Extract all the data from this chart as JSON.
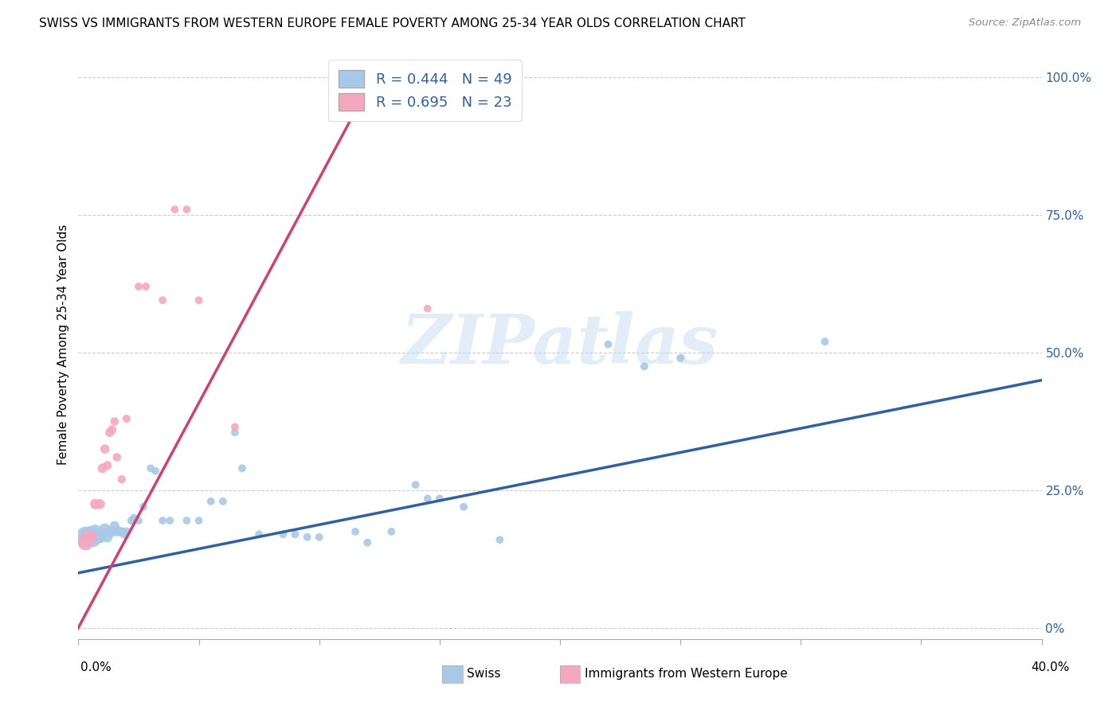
{
  "title": "SWISS VS IMMIGRANTS FROM WESTERN EUROPE FEMALE POVERTY AMONG 25-34 YEAR OLDS CORRELATION CHART",
  "source": "Source: ZipAtlas.com",
  "ylabel": "Female Poverty Among 25-34 Year Olds",
  "xlim": [
    0.0,
    0.4
  ],
  "ylim": [
    -0.02,
    1.05
  ],
  "blue_R": 0.444,
  "blue_N": 49,
  "pink_R": 0.695,
  "pink_N": 23,
  "blue_color": "#A8C8E8",
  "pink_color": "#F4A8C0",
  "blue_line_color": "#3060A0",
  "pink_line_color": "#D04070",
  "legend_text_color": "#3060A0",
  "watermark_color": "#C8DCF0",
  "background_color": "#FFFFFF",
  "grid_color": "#CCCCCC",
  "ytick_values": [
    0.0,
    0.25,
    0.5,
    0.75,
    1.0
  ],
  "ytick_labels": [
    "0%",
    "25.0%",
    "50.0%",
    "75.0%",
    "100.0%"
  ],
  "blue_line_x": [
    0.0,
    0.4
  ],
  "blue_line_y": [
    0.1,
    0.45
  ],
  "pink_line_x": [
    -0.005,
    0.125
  ],
  "pink_line_y": [
    -0.04,
    1.02
  ],
  "blue_points": [
    [
      0.003,
      0.165
    ],
    [
      0.004,
      0.165
    ],
    [
      0.005,
      0.17
    ],
    [
      0.006,
      0.16
    ],
    [
      0.007,
      0.175
    ],
    [
      0.008,
      0.165
    ],
    [
      0.009,
      0.165
    ],
    [
      0.01,
      0.17
    ],
    [
      0.011,
      0.18
    ],
    [
      0.012,
      0.165
    ],
    [
      0.013,
      0.175
    ],
    [
      0.014,
      0.175
    ],
    [
      0.015,
      0.185
    ],
    [
      0.016,
      0.175
    ],
    [
      0.017,
      0.175
    ],
    [
      0.018,
      0.175
    ],
    [
      0.019,
      0.17
    ],
    [
      0.02,
      0.175
    ],
    [
      0.022,
      0.195
    ],
    [
      0.023,
      0.2
    ],
    [
      0.025,
      0.195
    ],
    [
      0.027,
      0.22
    ],
    [
      0.03,
      0.29
    ],
    [
      0.032,
      0.285
    ],
    [
      0.035,
      0.195
    ],
    [
      0.038,
      0.195
    ],
    [
      0.045,
      0.195
    ],
    [
      0.05,
      0.195
    ],
    [
      0.055,
      0.23
    ],
    [
      0.06,
      0.23
    ],
    [
      0.065,
      0.355
    ],
    [
      0.068,
      0.29
    ],
    [
      0.075,
      0.17
    ],
    [
      0.085,
      0.17
    ],
    [
      0.09,
      0.17
    ],
    [
      0.095,
      0.165
    ],
    [
      0.1,
      0.165
    ],
    [
      0.115,
      0.175
    ],
    [
      0.12,
      0.155
    ],
    [
      0.13,
      0.175
    ],
    [
      0.14,
      0.26
    ],
    [
      0.145,
      0.235
    ],
    [
      0.15,
      0.235
    ],
    [
      0.16,
      0.22
    ],
    [
      0.175,
      0.16
    ],
    [
      0.22,
      0.515
    ],
    [
      0.235,
      0.475
    ],
    [
      0.25,
      0.49
    ],
    [
      0.31,
      0.52
    ]
  ],
  "blue_sizes": [
    350,
    280,
    220,
    180,
    160,
    140,
    120,
    110,
    100,
    95,
    90,
    85,
    80,
    75,
    70,
    65,
    60,
    58,
    55,
    52,
    50,
    50,
    50,
    50,
    50,
    50,
    50,
    50,
    50,
    50,
    50,
    50,
    50,
    50,
    50,
    50,
    50,
    50,
    50,
    50,
    50,
    50,
    50,
    50,
    50,
    50,
    50,
    50,
    50
  ],
  "pink_points": [
    [
      0.003,
      0.155
    ],
    [
      0.004,
      0.165
    ],
    [
      0.005,
      0.165
    ],
    [
      0.007,
      0.225
    ],
    [
      0.009,
      0.225
    ],
    [
      0.01,
      0.29
    ],
    [
      0.011,
      0.325
    ],
    [
      0.012,
      0.295
    ],
    [
      0.013,
      0.355
    ],
    [
      0.014,
      0.36
    ],
    [
      0.015,
      0.375
    ],
    [
      0.016,
      0.31
    ],
    [
      0.018,
      0.27
    ],
    [
      0.02,
      0.38
    ],
    [
      0.025,
      0.62
    ],
    [
      0.028,
      0.62
    ],
    [
      0.035,
      0.595
    ],
    [
      0.04,
      0.76
    ],
    [
      0.045,
      0.76
    ],
    [
      0.05,
      0.595
    ],
    [
      0.065,
      0.365
    ],
    [
      0.12,
      0.985
    ],
    [
      0.145,
      0.58
    ]
  ],
  "pink_sizes": [
    200,
    160,
    130,
    90,
    80,
    75,
    70,
    68,
    65,
    63,
    60,
    58,
    55,
    53,
    50,
    50,
    50,
    50,
    50,
    50,
    50,
    50,
    50
  ]
}
